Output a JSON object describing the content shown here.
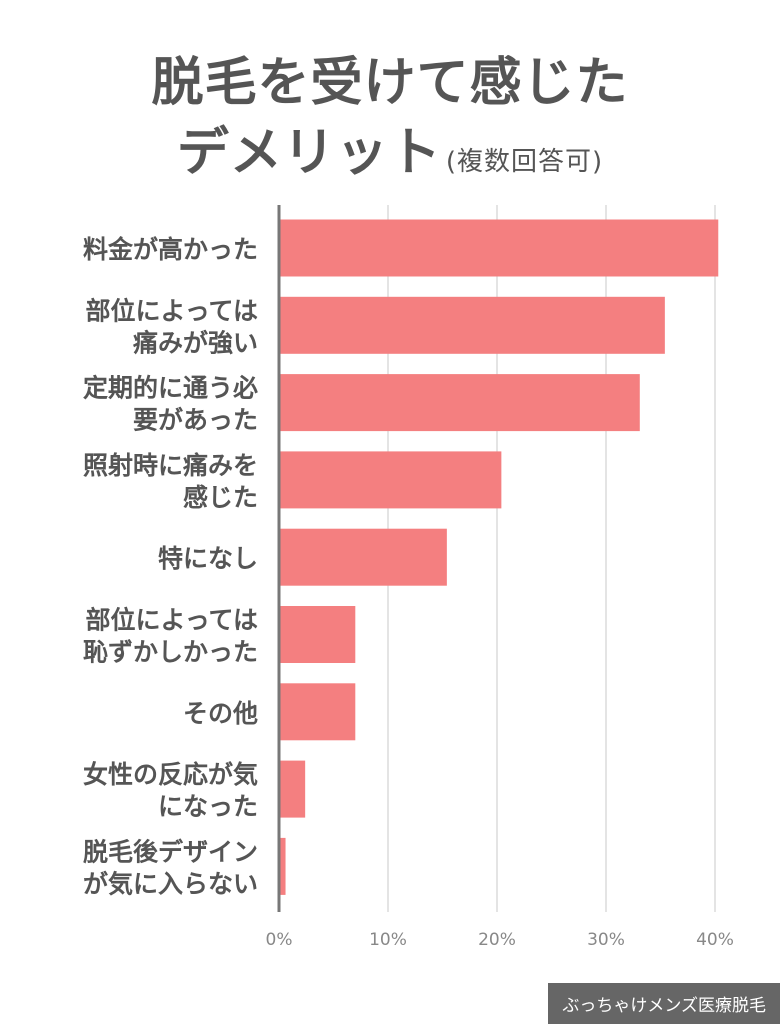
{
  "title": {
    "line1": "脱毛を受けて感じた",
    "line2": "デメリット",
    "note": "(複数回答可)"
  },
  "footer": "ぶっちゃけメンズ医療脱毛",
  "colors": {
    "bar": "#F47F80",
    "text": "#555555",
    "axis": "#777777",
    "grid": "#E4E4E4"
  },
  "chart_data": {
    "type": "bar",
    "orientation": "horizontal",
    "categories": [
      [
        "料金が高かった"
      ],
      [
        "部位によっては",
        "痛みが強い"
      ],
      [
        "定期的に通う必",
        "要があった"
      ],
      [
        "照射時に痛みを",
        "感じた"
      ],
      [
        "特になし"
      ],
      [
        "部位によっては",
        "恥ずかしかった"
      ],
      [
        "その他"
      ],
      [
        "女性の反応が気",
        "になった"
      ],
      [
        "脱毛後デザイン",
        "が気に入らない"
      ]
    ],
    "values": [
      40.3,
      35.4,
      33.1,
      20.4,
      15.4,
      7.0,
      7.0,
      2.4,
      0.6
    ],
    "unit": "%",
    "xlim": [
      0,
      40
    ],
    "xticks": [
      "0%",
      "10%",
      "20%",
      "30%",
      "40%"
    ],
    "grid": true
  }
}
